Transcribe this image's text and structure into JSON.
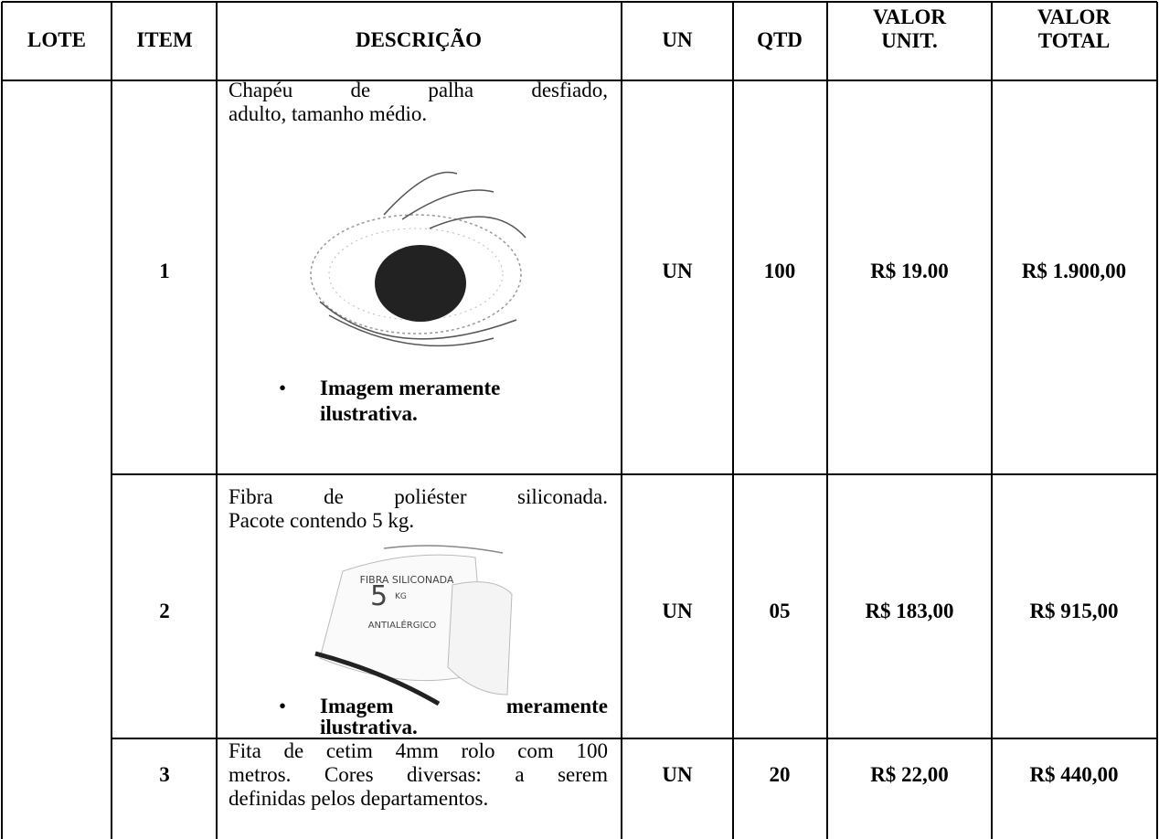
{
  "table": {
    "headers": [
      "LOTE",
      "ITEM",
      "DESCRIÇÃO",
      "UN",
      "QTD",
      "VALOR UNIT.",
      "VALOR TOTAL"
    ],
    "rows": [
      {
        "item": "1",
        "description": [
          "Chapéu de palha desfiado,",
          "adulto, tamanho médio."
        ],
        "note": [
          "Imagem meramente",
          "ilustrativa."
        ],
        "un": "UN",
        "qtd": "100",
        "unit_value": "R$ 19.00",
        "total_value": "R$ 1.900,00"
      },
      {
        "item": "2",
        "description": [
          "Fibra de poliéster siliconada.",
          "Pacote contendo 5 kg."
        ],
        "image_text": [
          "FIBRA SILICONADA",
          "5",
          "KG",
          "ANTIALÉRGICO"
        ],
        "note": [
          "Imagem meramente",
          "ilustrativa."
        ],
        "un": "UN",
        "qtd": "05",
        "unit_value": "R$ 183,00",
        "total_value": "R$ 915,00"
      },
      {
        "item": "3",
        "description": [
          "Fita de cetim 4mm rolo com 100",
          "metros. Cores diversas: a serem",
          "definidas pelos departamentos."
        ],
        "un": "UN",
        "qtd": "20",
        "unit_value": "R$ 22,00",
        "total_value": "R$ 440,00"
      }
    ]
  }
}
